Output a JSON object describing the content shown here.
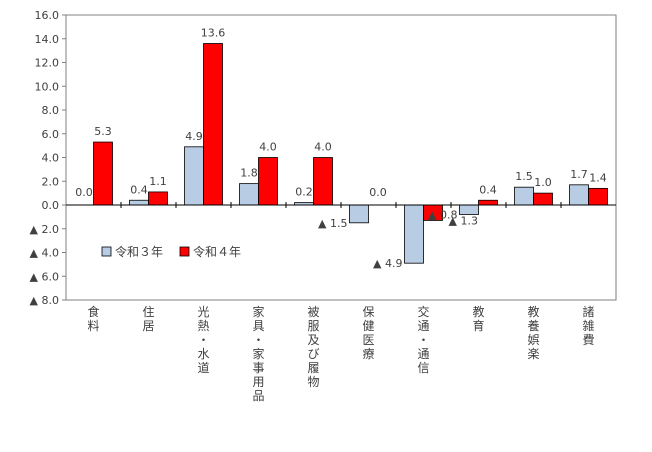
{
  "chart_data": {
    "type": "bar",
    "categories": [
      {
        "label": "食料",
        "chars": [
          "食",
          "料"
        ]
      },
      {
        "label": "住居",
        "chars": [
          "住",
          "居"
        ]
      },
      {
        "label": "光熱・水道",
        "chars": [
          "光",
          "熱",
          "・",
          "水",
          "道"
        ]
      },
      {
        "label": "家具・家事用品",
        "chars": [
          "家",
          "具",
          "・",
          "家",
          "事",
          "用",
          "品"
        ]
      },
      {
        "label": "被服及び履物",
        "chars": [
          "被",
          "服",
          "及",
          "び",
          "履",
          "物"
        ]
      },
      {
        "label": "保健医療",
        "chars": [
          "保",
          "健",
          "医",
          "療"
        ]
      },
      {
        "label": "交通・通信",
        "chars": [
          "交",
          "通",
          "・",
          "通",
          "信"
        ]
      },
      {
        "label": "教育",
        "chars": [
          "教",
          "育"
        ]
      },
      {
        "label": "教養娯楽",
        "chars": [
          "教",
          "養",
          "娯",
          "楽"
        ]
      },
      {
        "label": "諸雑費",
        "chars": [
          "諸",
          "雑",
          "費"
        ]
      }
    ],
    "series": [
      {
        "name": "令和３年",
        "color": "#b8cce4",
        "values": [
          0.0,
          0.4,
          4.9,
          1.8,
          0.2,
          -1.5,
          -4.9,
          -0.8,
          1.5,
          1.7
        ],
        "labels": [
          "0.0",
          "0.4",
          "4.9",
          "1.8",
          "0.2",
          "▲ 1.5",
          "▲ 4.9",
          "▲ 0.8",
          "1.5",
          "1.7"
        ]
      },
      {
        "name": "令和４年",
        "color": "#ff0000",
        "values": [
          5.3,
          1.1,
          13.6,
          4.0,
          4.0,
          0.0,
          -1.3,
          0.4,
          1.0,
          1.4
        ],
        "labels": [
          "5.3",
          "1.1",
          "13.6",
          "4.0",
          "4.0",
          "0.0",
          "▲ 1.3",
          "0.4",
          "1.0",
          "1.4"
        ]
      }
    ],
    "ylim": [
      -8.0,
      16.0
    ],
    "yticks": [
      16.0,
      14.0,
      12.0,
      10.0,
      8.0,
      6.0,
      4.0,
      2.0,
      0.0,
      -2.0,
      -4.0,
      -6.0,
      -8.0
    ],
    "ytick_labels": [
      "16.0",
      "14.0",
      "12.0",
      "10.0",
      "8.0",
      "6.0",
      "4.0",
      "2.0",
      "0.0",
      "▲ 2.0",
      "▲ 4.0",
      "▲ 6.0",
      "▲ 8.0"
    ],
    "legend": {
      "position": "lower-left",
      "items": [
        "令和３年",
        "令和４年"
      ]
    },
    "title": "",
    "xlabel": "",
    "ylabel": "",
    "grid": false
  }
}
